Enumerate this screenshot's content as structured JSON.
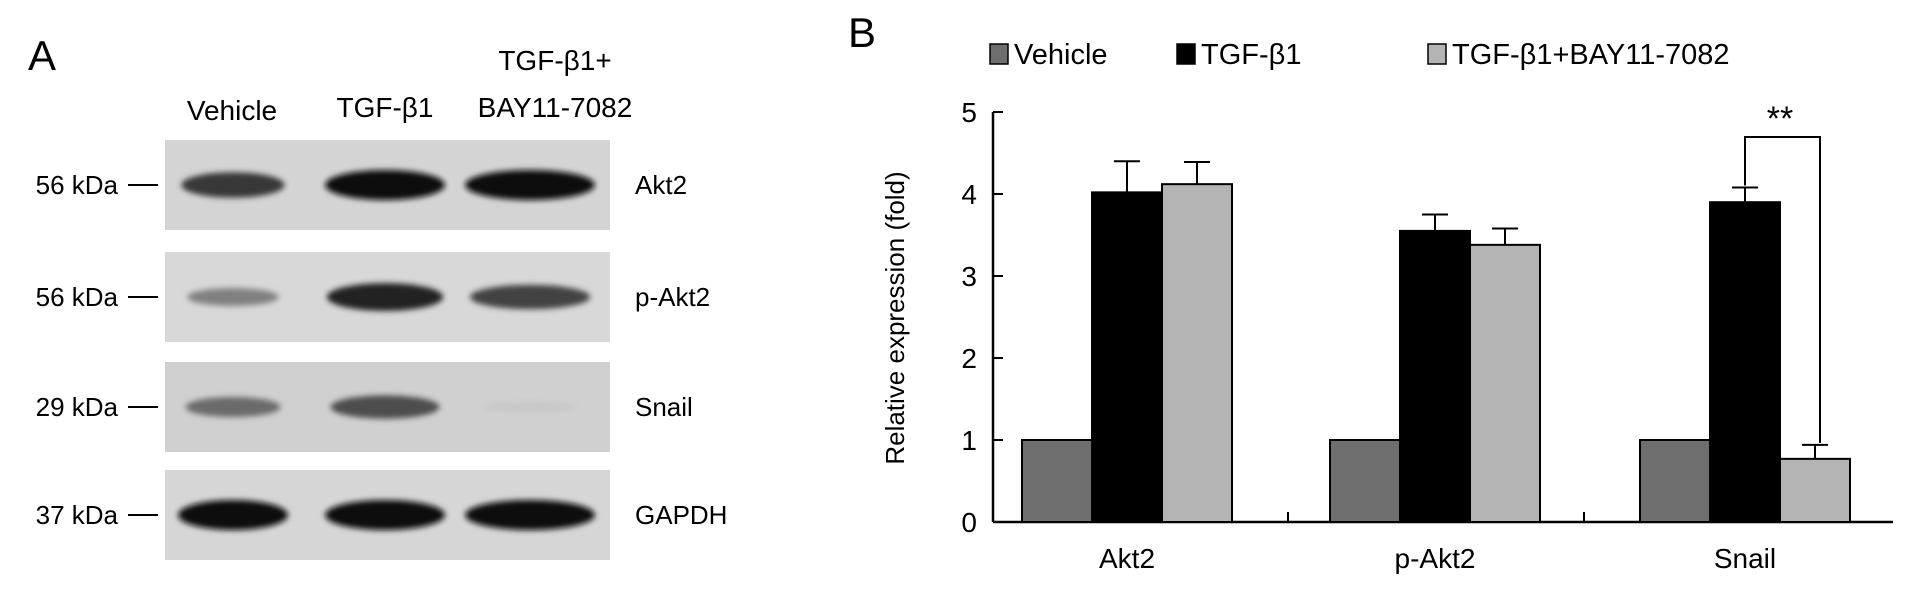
{
  "panel_a": {
    "label": "A",
    "columns": [
      "Vehicle",
      "TGF-β1",
      "TGF-β1+",
      "BAY11-7082"
    ],
    "rows": [
      {
        "marker": "56 kDa",
        "protein": "Akt2",
        "bands": [
          0.8,
          1.0,
          1.0
        ]
      },
      {
        "marker": "56 kDa",
        "protein": "p-Akt2",
        "bands": [
          0.45,
          0.9,
          0.75
        ]
      },
      {
        "marker": "29 kDa",
        "protein": "Snail",
        "bands": [
          0.55,
          0.7,
          0.1
        ]
      },
      {
        "marker": "37 kDa",
        "protein": "GAPDH",
        "bands": [
          1.0,
          1.0,
          1.0
        ]
      }
    ]
  },
  "panel_b": {
    "label": "B",
    "significance": "**",
    "colors": {
      "Vehicle": "#6e6e6e",
      "TGF-β1": "#000000",
      "TGF-β1+BAY11-7082": "#b4b4b4"
    }
  },
  "chart_data": {
    "type": "bar",
    "categories": [
      "Akt2",
      "p-Akt2",
      "Snail"
    ],
    "series": [
      {
        "name": "Vehicle",
        "values": [
          1.0,
          1.0,
          1.0
        ],
        "errors": [
          0,
          0,
          0
        ]
      },
      {
        "name": "TGF-β1",
        "values": [
          4.02,
          3.55,
          3.9
        ],
        "errors": [
          0.38,
          0.2,
          0.18
        ]
      },
      {
        "name": "TGF-β1+BAY11-7082",
        "values": [
          4.12,
          3.38,
          0.77
        ],
        "errors": [
          0.27,
          0.2,
          0.17
        ]
      }
    ],
    "ylabel": "Relative expression (fold)",
    "xlabel": "",
    "ylim": [
      0,
      5
    ],
    "yticks": [
      0,
      1,
      2,
      3,
      4,
      5
    ],
    "legend": "top",
    "grid": false
  }
}
